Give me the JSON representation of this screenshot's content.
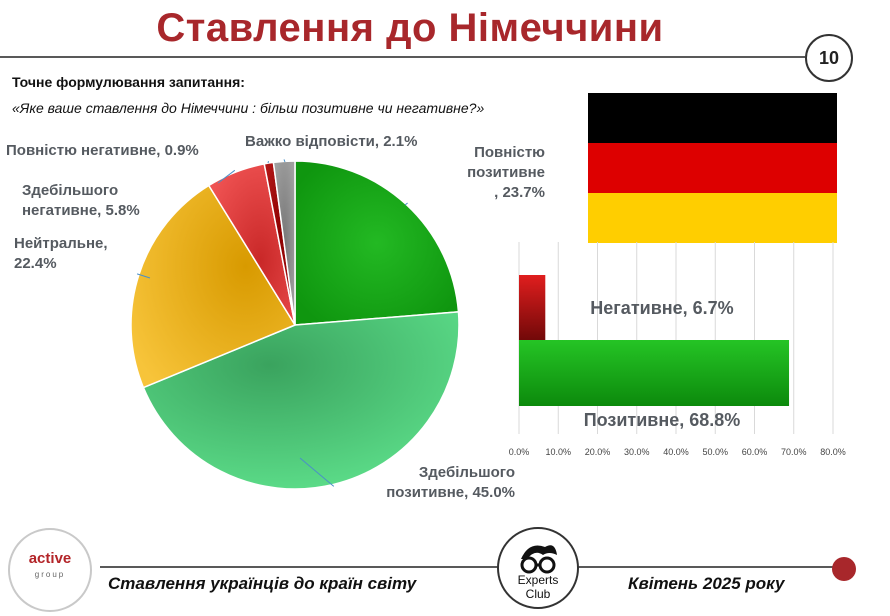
{
  "header": {
    "title": "Ставлення до Німеччини",
    "page_number": "10"
  },
  "question": {
    "label": "Точне формулювання запитання:",
    "text": "«Яке ваше ставлення до Німеччини : більш позитивне чи негативне?»"
  },
  "footer": {
    "left_text": "Ставлення українців до країн світу",
    "right_text": "Квітень 2025 року",
    "logo_left_word": "active",
    "logo_left_sub": "group",
    "logo_right_line1": "Experts",
    "logo_right_line2": "Club"
  },
  "colors": {
    "title": "#a8272b",
    "flag": [
      "#000000",
      "#dd0000",
      "#ffce00"
    ]
  },
  "chart_data": [
    {
      "type": "pie",
      "slices": [
        {
          "label_lines": [
            "Повністю",
            "позитивне",
            ", 23.7%"
          ],
          "value": 23.7,
          "color": "#1aa31a"
        },
        {
          "label_lines": [
            "Здебільшого",
            "позитивне, 45.0%"
          ],
          "value": 45.0,
          "color": "#4fd07a"
        },
        {
          "label_lines": [
            "Нейтральне,",
            "22.4%"
          ],
          "value": 22.4,
          "color": "#f0b400"
        },
        {
          "label_lines": [
            "Здебільшого",
            "негативне, 5.8%"
          ],
          "value": 5.8,
          "color": "#e03a3a"
        },
        {
          "label_lines": [
            "Повністю негативне, 0.9%"
          ],
          "value": 0.9,
          "color": "#a30d0d"
        },
        {
          "label_lines": [
            "Важко відповісти, 2.1%"
          ],
          "value": 2.1,
          "color": "#8c8c8c"
        }
      ]
    },
    {
      "type": "bar",
      "orientation": "horizontal",
      "categories": [
        "Негативне",
        "Позитивне"
      ],
      "values": [
        6.7,
        68.8
      ],
      "data_labels": [
        "Негативне, 6.7%",
        "Позитивне, 68.8%"
      ],
      "colors": [
        "#c41a1a",
        "#1aa31a"
      ],
      "xlim": [
        0,
        80
      ],
      "xticks": [
        "0.0%",
        "10.0%",
        "20.0%",
        "30.0%",
        "40.0%",
        "50.0%",
        "60.0%",
        "70.0%",
        "80.0%"
      ],
      "grid": true
    }
  ]
}
